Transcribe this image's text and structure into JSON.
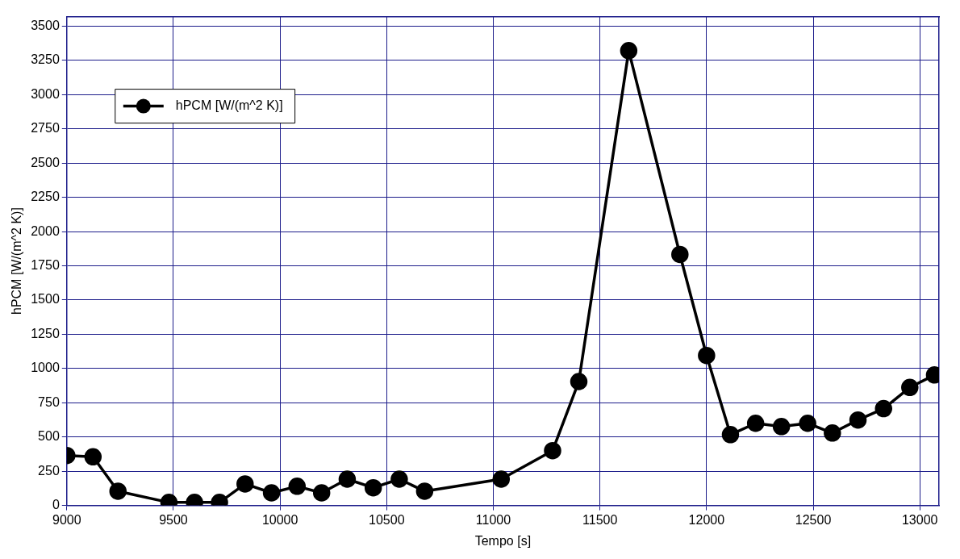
{
  "chart_data": {
    "type": "line",
    "xlabel": "Tempo [s]",
    "ylabel": "hPCM [W/(m^2 K)]",
    "xlim": [
      9000,
      13090
    ],
    "xticks": [
      9000,
      9500,
      10000,
      10500,
      11000,
      11500,
      12000,
      12500,
      13000
    ],
    "ylim": [
      0,
      3570
    ],
    "yticks": [
      0,
      250,
      500,
      750,
      1000,
      1250,
      1500,
      1750,
      2000,
      2250,
      2500,
      2750,
      3000,
      3250,
      3500
    ],
    "grid": true,
    "legend": "top left",
    "marker": "circle",
    "line_style": "solid",
    "series": [
      {
        "name": "hPCM [W/(m^2 K)]",
        "color": "#000000",
        "x": [
          9000,
          9123,
          9240,
          9479,
          9599,
          9716,
          9836,
          9960,
          10080,
          10195,
          10315,
          10437,
          10559,
          10678,
          11037,
          11278,
          11401,
          11635,
          11875,
          12000,
          12112,
          12230,
          12351,
          12474,
          12590,
          12710,
          12830,
          12953,
          13069
        ],
        "values": [
          365,
          355,
          104,
          22,
          22,
          22,
          157,
          92,
          140,
          92,
          192,
          129,
          192,
          104,
          192,
          400,
          905,
          3321,
          1833,
          1095,
          517,
          600,
          576,
          600,
          529,
          624,
          707,
          862,
          953
        ]
      }
    ]
  }
}
